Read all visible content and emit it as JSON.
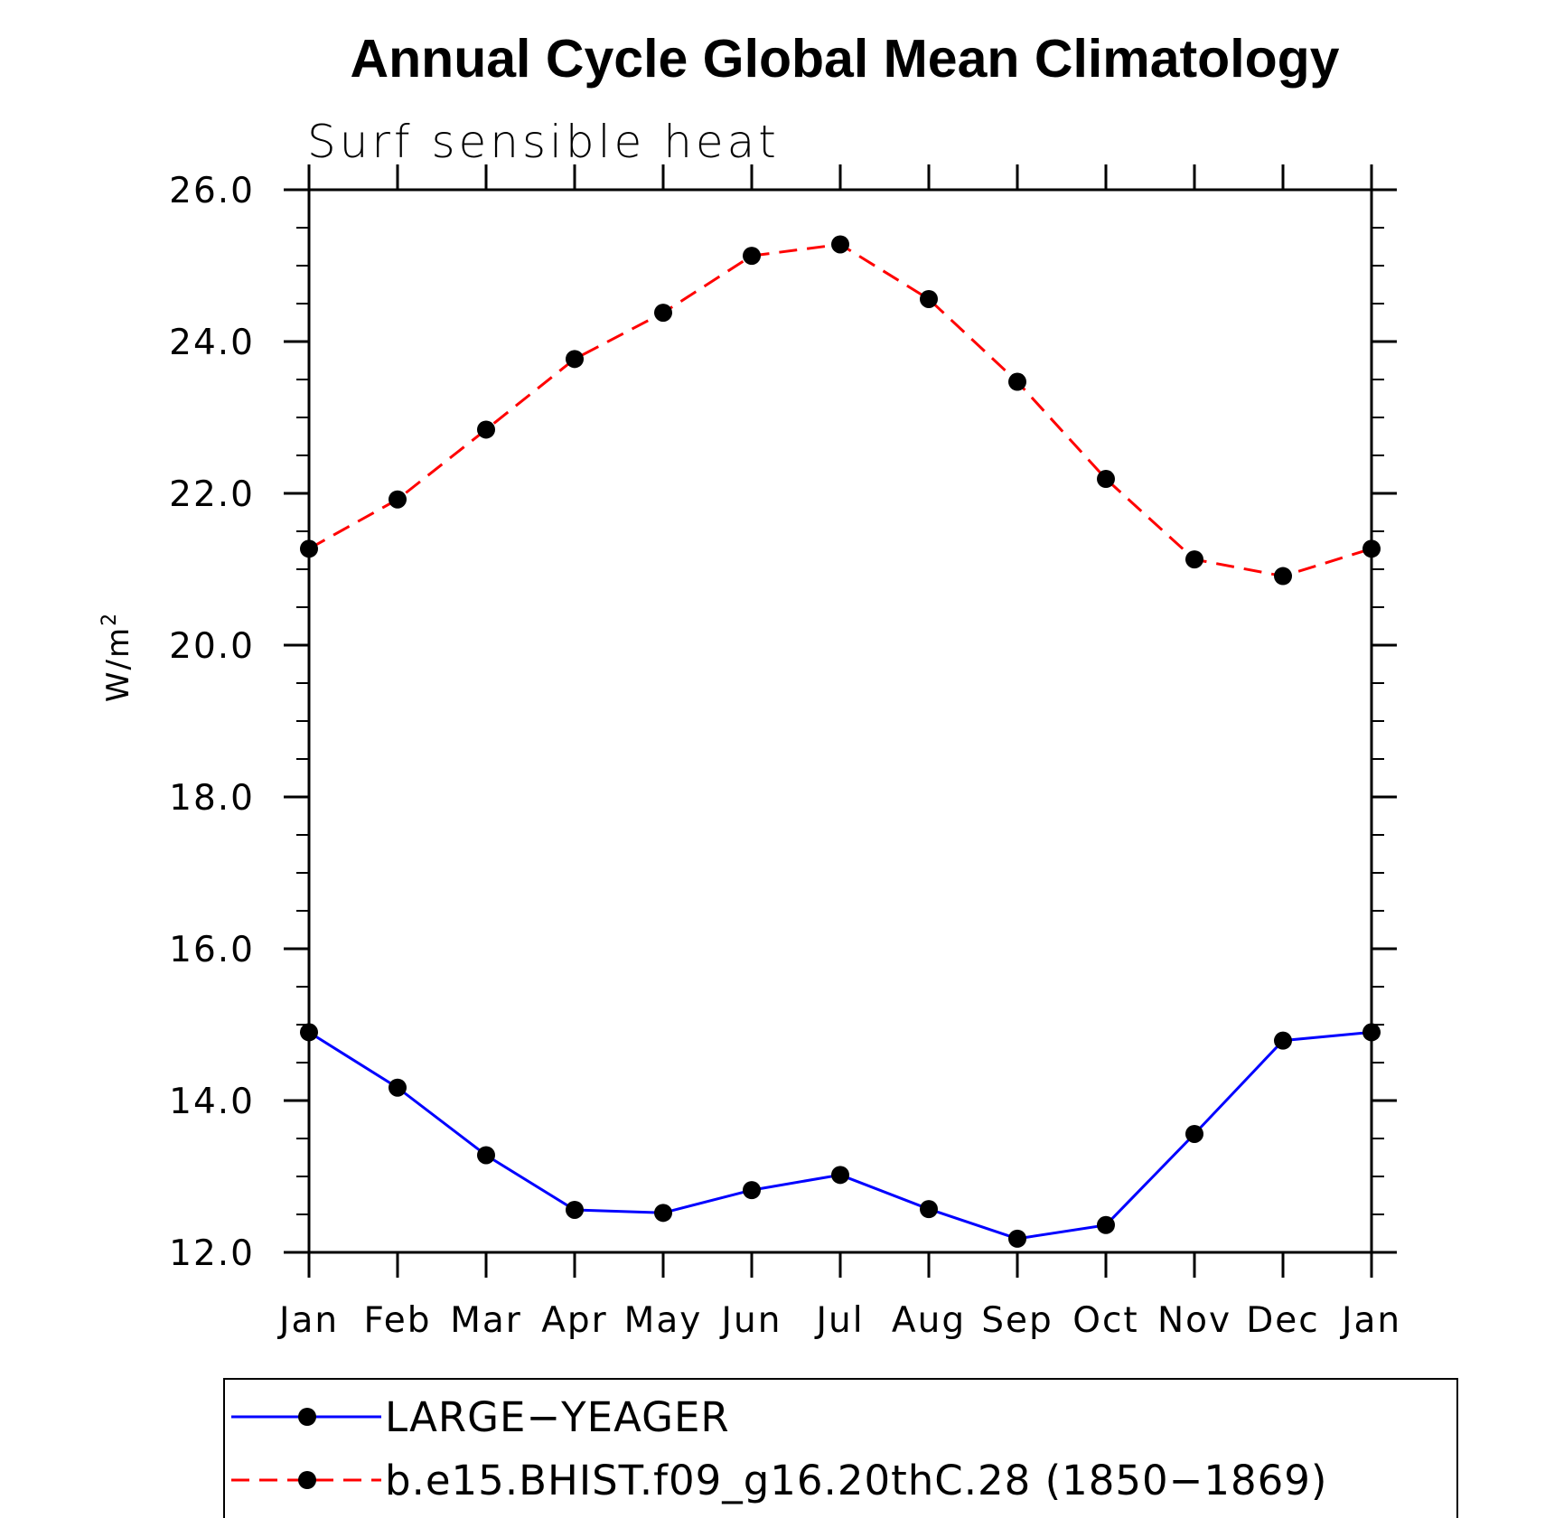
{
  "chart_data": {
    "type": "line",
    "title": "Annual Cycle Global Mean Climatology",
    "subtitle": "Surf sensible heat",
    "ylabel": "W/m",
    "ylabel_superscript": "2",
    "xlabel": "",
    "categories": [
      "Jan",
      "Feb",
      "Mar",
      "Apr",
      "May",
      "Jun",
      "Jul",
      "Aug",
      "Sep",
      "Oct",
      "Nov",
      "Dec",
      "Jan"
    ],
    "ylim": [
      12.0,
      26.0
    ],
    "yticks": [
      "12.0",
      "14.0",
      "16.0",
      "18.0",
      "20.0",
      "22.0",
      "24.0",
      "26.0"
    ],
    "grid": false,
    "legend_position": "bottom",
    "series": [
      {
        "name": "LARGE−YEAGER",
        "color": "#0000ff",
        "line_style": "solid",
        "marker": "filled-circle",
        "values": [
          14.9,
          14.17,
          13.28,
          12.56,
          12.52,
          12.82,
          13.02,
          12.57,
          12.18,
          12.36,
          13.56,
          14.79,
          14.9
        ]
      },
      {
        "name": "b.e15.BHIST.f09_g16.20thC.28 (1850−1869)",
        "color": "#ff0000",
        "line_style": "dashed",
        "marker": "filled-circle",
        "values": [
          21.27,
          21.92,
          22.84,
          23.77,
          24.38,
          25.13,
          25.28,
          24.56,
          23.47,
          22.19,
          21.13,
          20.91,
          21.27
        ]
      }
    ]
  }
}
